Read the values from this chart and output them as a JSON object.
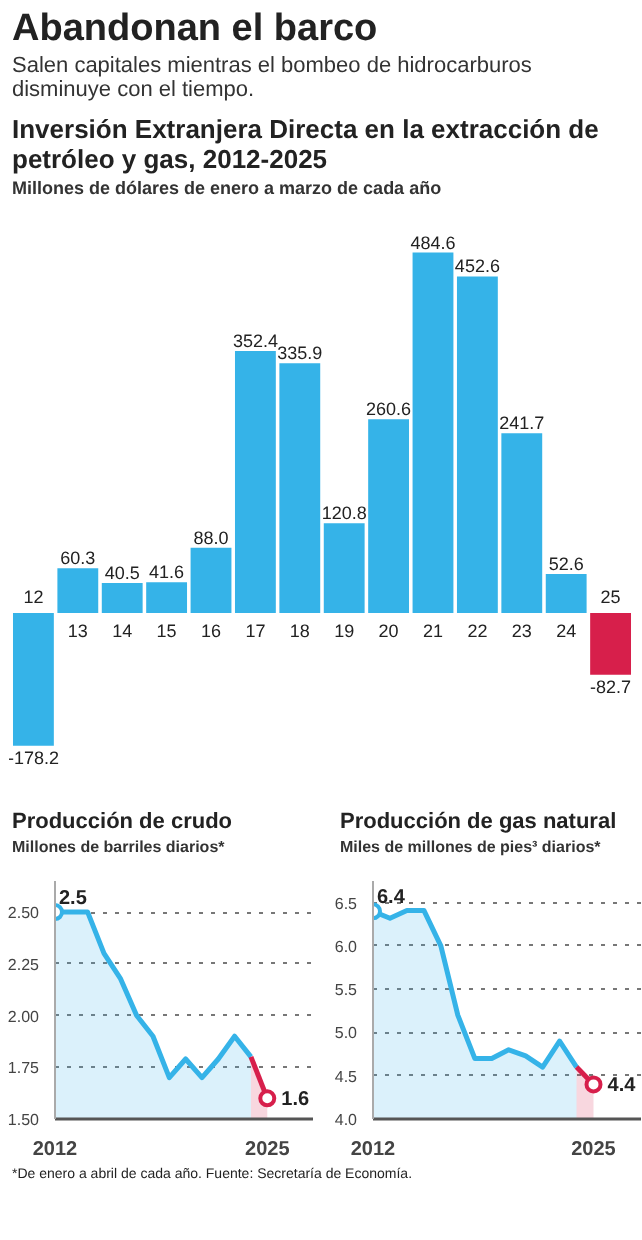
{
  "chart_data": [
    {
      "type": "other",
      "title": "Abandonan el barco",
      "subtitle": "Salen capitales mientras el bombeo de hidrocarburos disminuye con el tiempo.",
      "annotations": [
        "*De enero a abril de cada año. Fuente: Secretaría de Economía."
      ]
    },
    {
      "type": "bar",
      "title": "Inversión Extranjera Directa en la extracción de petróleo y gas, 2012-2025",
      "subtitle": "Millones de dólares de enero a marzo de cada año",
      "categories": [
        "12",
        "13",
        "14",
        "15",
        "16",
        "17",
        "18",
        "19",
        "20",
        "21",
        "22",
        "23",
        "24",
        "25"
      ],
      "values": [
        -178.2,
        60.3,
        40.5,
        41.6,
        88.0,
        352.4,
        335.9,
        120.8,
        260.6,
        484.6,
        452.6,
        241.7,
        52.6,
        -82.7
      ],
      "colors": [
        "#35b3e8",
        "#35b3e8",
        "#35b3e8",
        "#35b3e8",
        "#35b3e8",
        "#35b3e8",
        "#35b3e8",
        "#35b3e8",
        "#35b3e8",
        "#35b3e8",
        "#35b3e8",
        "#35b3e8",
        "#35b3e8",
        "#d71f4b"
      ],
      "value_labels": [
        "-178.2",
        "60.3",
        "40.5",
        "41.6",
        "88.0",
        "352.4",
        "335.9",
        "120.8",
        "260.6",
        "484.6",
        "452.6",
        "241.7",
        "52.6",
        "-82.7"
      ]
    },
    {
      "type": "area",
      "title": "Producción de crudo",
      "subtitle": "Millones de barriles diarios*",
      "xlim": [
        2012,
        2027.8
      ],
      "xticks": [
        2012,
        2025
      ],
      "ylim": [
        1.5,
        2.65
      ],
      "yticks": [
        {
          "value": 1.5,
          "label": "1.50"
        },
        {
          "value": 1.75,
          "label": "1.75"
        },
        {
          "value": 2.0,
          "label": "2.00"
        },
        {
          "value": 2.25,
          "label": "2.25"
        },
        {
          "value": 2.5,
          "label": "2.50"
        }
      ],
      "grid": "y",
      "series": [
        {
          "type": "area",
          "color": "#35b3e8",
          "x": [
            2012,
            2013,
            2014,
            2015,
            2016,
            2017,
            2018,
            2019,
            2020,
            2021,
            2022,
            2023,
            2024
          ],
          "values": [
            2.5,
            2.5,
            2.5,
            2.3,
            2.18,
            2.0,
            1.9,
            1.7,
            1.79,
            1.7,
            1.79,
            1.9,
            1.8
          ],
          "value_labels": [
            "2.5",
            null,
            null,
            null,
            null,
            null,
            null,
            null,
            null,
            null,
            null,
            null,
            null
          ]
        },
        {
          "type": "area",
          "color": "#d71f4b",
          "x": [
            2024,
            2025
          ],
          "values": [
            1.8,
            1.6
          ],
          "value_labels": [
            null,
            "1.6"
          ]
        }
      ]
    },
    {
      "type": "area",
      "title": "Producción de gas natural",
      "subtitle": "Miles de millones de pies³ diarios*",
      "xlim": [
        2012,
        2027.8
      ],
      "xticks": [
        2012,
        2025
      ],
      "ylim": [
        4.0,
        6.75
      ],
      "yticks": [
        {
          "value": 4.0,
          "label": "4.0"
        },
        {
          "value": 4.5,
          "label": "4.5"
        },
        {
          "value": 5.0,
          "label": "5.0"
        },
        {
          "value": 5.5,
          "label": "5.5"
        },
        {
          "value": 6.0,
          "label": "6.0"
        },
        {
          "value": 6.5,
          "label": "6.5"
        }
      ],
      "grid": "y",
      "series": [
        {
          "type": "area",
          "color": "#35b3e8",
          "x": [
            2012,
            2013,
            2014,
            2015,
            2016,
            2017,
            2018,
            2019,
            2020,
            2021,
            2022,
            2023,
            2024
          ],
          "values": [
            6.4,
            6.32,
            6.41,
            6.41,
            6.0,
            5.2,
            4.7,
            4.7,
            4.8,
            4.73,
            4.6,
            4.9,
            4.6
          ],
          "value_labels": [
            "6.4",
            null,
            null,
            null,
            null,
            null,
            null,
            null,
            null,
            null,
            null,
            null,
            null
          ]
        },
        {
          "type": "area",
          "color": "#d71f4b",
          "x": [
            2024,
            2025
          ],
          "values": [
            4.6,
            4.4
          ],
          "value_labels": [
            null,
            "4.4"
          ]
        }
      ]
    }
  ]
}
